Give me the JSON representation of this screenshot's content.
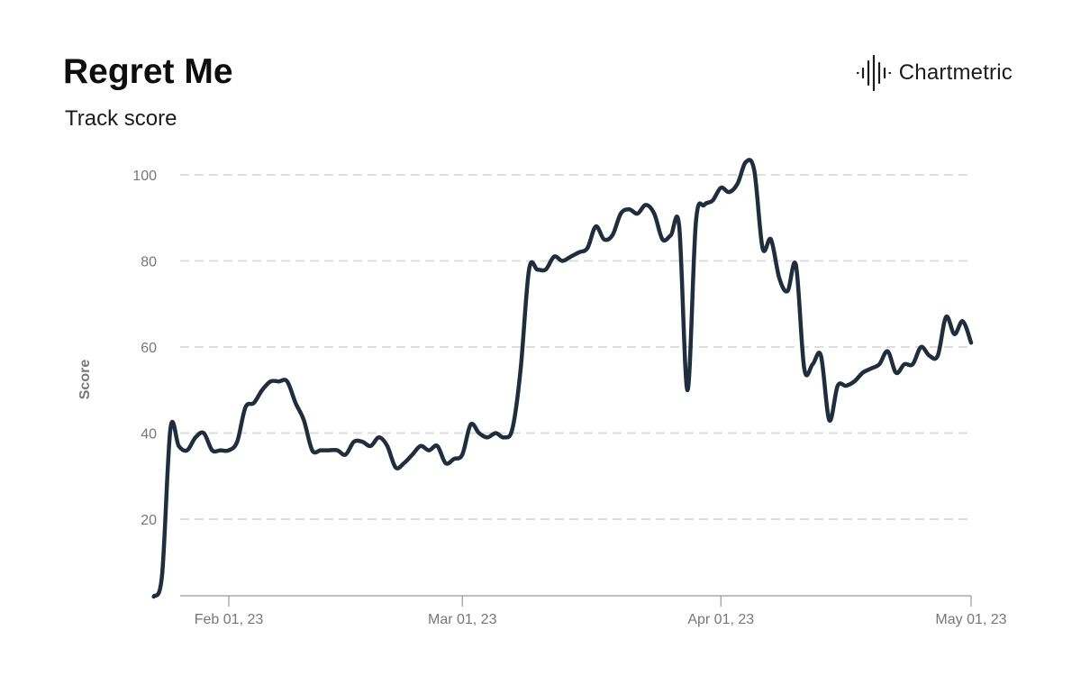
{
  "title": "Regret Me",
  "subtitle": "Track score",
  "brand": {
    "name": "Chartmetric",
    "icon": "waveform-logo-icon"
  },
  "colors": {
    "line": "#1f2d3d",
    "grid": "#dddddd",
    "axis": "#777777"
  },
  "chart_data": {
    "type": "line",
    "title": "Regret Me",
    "subtitle": "Track score",
    "ylabel": "Score",
    "xlabel": "",
    "x_range": [
      "2023-01-25",
      "2023-05-01"
    ],
    "ylim": [
      2,
      110
    ],
    "yticks": [
      20,
      40,
      60,
      80,
      100
    ],
    "xticks": [
      {
        "date": "2023-02-01",
        "label": "Feb 01, 23"
      },
      {
        "date": "2023-03-01",
        "label": "Mar 01, 23"
      },
      {
        "date": "2023-04-01",
        "label": "Apr 01, 23"
      },
      {
        "date": "2023-05-01",
        "label": "May 01, 23"
      }
    ],
    "grid": "horizontal dashed",
    "series": [
      {
        "values": [
          {
            "x": "2023-01-23",
            "y": 2
          },
          {
            "x": "2023-01-24",
            "y": 7
          },
          {
            "x": "2023-01-25",
            "y": 41
          },
          {
            "x": "2023-01-26",
            "y": 37
          },
          {
            "x": "2023-01-27",
            "y": 36
          },
          {
            "x": "2023-01-28",
            "y": 39
          },
          {
            "x": "2023-01-29",
            "y": 40
          },
          {
            "x": "2023-01-30",
            "y": 36
          },
          {
            "x": "2023-01-31",
            "y": 36
          },
          {
            "x": "2023-02-01",
            "y": 36
          },
          {
            "x": "2023-02-02",
            "y": 38
          },
          {
            "x": "2023-02-03",
            "y": 46
          },
          {
            "x": "2023-02-04",
            "y": 47
          },
          {
            "x": "2023-02-05",
            "y": 50
          },
          {
            "x": "2023-02-06",
            "y": 52
          },
          {
            "x": "2023-02-07",
            "y": 52
          },
          {
            "x": "2023-02-08",
            "y": 52
          },
          {
            "x": "2023-02-09",
            "y": 47
          },
          {
            "x": "2023-02-10",
            "y": 43
          },
          {
            "x": "2023-02-11",
            "y": 36
          },
          {
            "x": "2023-02-12",
            "y": 36
          },
          {
            "x": "2023-02-13",
            "y": 36
          },
          {
            "x": "2023-02-14",
            "y": 36
          },
          {
            "x": "2023-02-15",
            "y": 35
          },
          {
            "x": "2023-02-16",
            "y": 38
          },
          {
            "x": "2023-02-17",
            "y": 38
          },
          {
            "x": "2023-02-18",
            "y": 37
          },
          {
            "x": "2023-02-19",
            "y": 39
          },
          {
            "x": "2023-02-20",
            "y": 37
          },
          {
            "x": "2023-02-21",
            "y": 32
          },
          {
            "x": "2023-02-22",
            "y": 33
          },
          {
            "x": "2023-02-23",
            "y": 35
          },
          {
            "x": "2023-02-24",
            "y": 37
          },
          {
            "x": "2023-02-25",
            "y": 36
          },
          {
            "x": "2023-02-26",
            "y": 37
          },
          {
            "x": "2023-02-27",
            "y": 33
          },
          {
            "x": "2023-02-28",
            "y": 34
          },
          {
            "x": "2023-03-01",
            "y": 35
          },
          {
            "x": "2023-03-02",
            "y": 42
          },
          {
            "x": "2023-03-03",
            "y": 40
          },
          {
            "x": "2023-03-04",
            "y": 39
          },
          {
            "x": "2023-03-05",
            "y": 40
          },
          {
            "x": "2023-03-06",
            "y": 39
          },
          {
            "x": "2023-03-07",
            "y": 41
          },
          {
            "x": "2023-03-08",
            "y": 55
          },
          {
            "x": "2023-03-09",
            "y": 78
          },
          {
            "x": "2023-03-10",
            "y": 78
          },
          {
            "x": "2023-03-11",
            "y": 78
          },
          {
            "x": "2023-03-12",
            "y": 81
          },
          {
            "x": "2023-03-13",
            "y": 80
          },
          {
            "x": "2023-03-14",
            "y": 81
          },
          {
            "x": "2023-03-15",
            "y": 82
          },
          {
            "x": "2023-03-16",
            "y": 83
          },
          {
            "x": "2023-03-17",
            "y": 88
          },
          {
            "x": "2023-03-18",
            "y": 85
          },
          {
            "x": "2023-03-19",
            "y": 86
          },
          {
            "x": "2023-03-20",
            "y": 91
          },
          {
            "x": "2023-03-21",
            "y": 92
          },
          {
            "x": "2023-03-22",
            "y": 91
          },
          {
            "x": "2023-03-23",
            "y": 93
          },
          {
            "x": "2023-03-24",
            "y": 91
          },
          {
            "x": "2023-03-25",
            "y": 85
          },
          {
            "x": "2023-03-26",
            "y": 86
          },
          {
            "x": "2023-03-27",
            "y": 88
          },
          {
            "x": "2023-03-28",
            "y": 50
          },
          {
            "x": "2023-03-29",
            "y": 89
          },
          {
            "x": "2023-03-30",
            "y": 93
          },
          {
            "x": "2023-03-31",
            "y": 94
          },
          {
            "x": "2023-04-01",
            "y": 97
          },
          {
            "x": "2023-04-02",
            "y": 96
          },
          {
            "x": "2023-04-03",
            "y": 98
          },
          {
            "x": "2023-04-04",
            "y": 103
          },
          {
            "x": "2023-04-05",
            "y": 101
          },
          {
            "x": "2023-04-06",
            "y": 83
          },
          {
            "x": "2023-04-07",
            "y": 85
          },
          {
            "x": "2023-04-08",
            "y": 76
          },
          {
            "x": "2023-04-09",
            "y": 73
          },
          {
            "x": "2023-04-10",
            "y": 79
          },
          {
            "x": "2023-04-11",
            "y": 55
          },
          {
            "x": "2023-04-12",
            "y": 56
          },
          {
            "x": "2023-04-13",
            "y": 58
          },
          {
            "x": "2023-04-14",
            "y": 43
          },
          {
            "x": "2023-04-15",
            "y": 51
          },
          {
            "x": "2023-04-16",
            "y": 51
          },
          {
            "x": "2023-04-17",
            "y": 52
          },
          {
            "x": "2023-04-18",
            "y": 54
          },
          {
            "x": "2023-04-19",
            "y": 55
          },
          {
            "x": "2023-04-20",
            "y": 56
          },
          {
            "x": "2023-04-21",
            "y": 59
          },
          {
            "x": "2023-04-22",
            "y": 54
          },
          {
            "x": "2023-04-23",
            "y": 56
          },
          {
            "x": "2023-04-24",
            "y": 56
          },
          {
            "x": "2023-04-25",
            "y": 60
          },
          {
            "x": "2023-04-26",
            "y": 58
          },
          {
            "x": "2023-04-27",
            "y": 58
          },
          {
            "x": "2023-04-28",
            "y": 67
          },
          {
            "x": "2023-04-29",
            "y": 63
          },
          {
            "x": "2023-04-30",
            "y": 66
          },
          {
            "x": "2023-05-01",
            "y": 61
          }
        ]
      }
    ]
  }
}
